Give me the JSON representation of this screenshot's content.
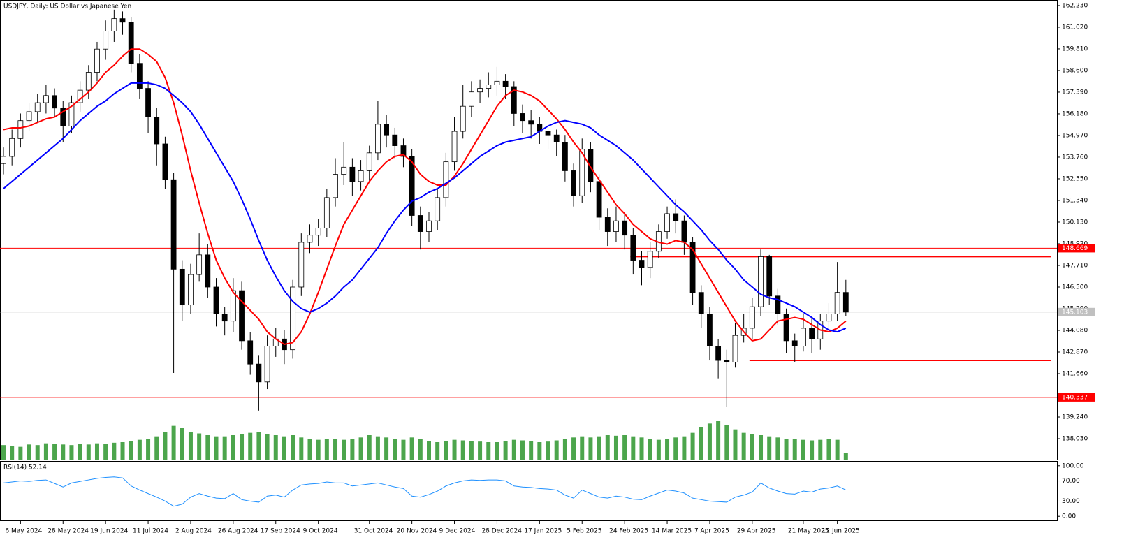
{
  "chart_data": [
    {
      "type": "candlestick",
      "title": "USDJPY, Daily:  US Dollar vs Japanese Yen",
      "categories": [
        null,
        null,
        "6 May 2024",
        null,
        null,
        null,
        null,
        "28 May 2024",
        null,
        null,
        null,
        null,
        "19 Jun 2024",
        null,
        null,
        null,
        null,
        "11 Jul 2024",
        null,
        null,
        null,
        null,
        "2 Aug 2024",
        null,
        null,
        null,
        null,
        "26 Aug 2024",
        null,
        null,
        null,
        null,
        "17 Sep 2024",
        null,
        null,
        null,
        null,
        "9 Oct 2024",
        null,
        null,
        null,
        null,
        null,
        "31 Oct 2024",
        null,
        null,
        null,
        null,
        "20 Nov 2024",
        null,
        null,
        null,
        null,
        "9 Dec 2024",
        null,
        null,
        null,
        null,
        "28 Dec 2024",
        null,
        null,
        null,
        null,
        "17 Jan 2025",
        null,
        null,
        null,
        null,
        "5 Feb 2025",
        null,
        null,
        null,
        null,
        "24 Feb 2025",
        null,
        null,
        null,
        null,
        "14 Mar 2025",
        null,
        null,
        null,
        null,
        "7 Apr 2025",
        null,
        null,
        null,
        null,
        "29 Apr 2025",
        null,
        null,
        null,
        null,
        null,
        "21 May 2025",
        null,
        null,
        null,
        "12 Jun 2025",
        null
      ],
      "open": [
        153.4,
        153.8,
        154.8,
        155.8,
        156.3,
        156.8,
        157.2,
        156.5,
        155.5,
        156.8,
        157.5,
        158.5,
        159.8,
        160.8,
        161.5,
        161.3,
        159.0,
        157.6,
        156.0,
        154.5,
        152.5,
        147.5,
        145.5,
        147.2,
        148.3,
        146.5,
        145.0,
        144.6,
        146.3,
        143.5,
        142.2,
        141.2,
        143.2,
        143.6,
        143.0,
        146.5,
        149.0,
        149.4,
        149.8,
        151.5,
        152.8,
        153.2,
        152.4,
        153.0,
        154.0,
        155.6,
        155.0,
        154.4,
        153.8,
        150.5,
        149.6,
        150.2,
        151.5,
        153.5,
        155.2,
        156.6,
        157.4,
        157.6,
        157.8,
        158.0,
        157.7,
        156.2,
        155.8,
        155.6,
        155.2,
        155.0,
        154.6,
        153.0,
        151.6,
        154.2,
        152.4,
        150.4,
        149.6,
        150.2,
        149.4,
        148.0,
        147.6,
        148.5,
        149.6,
        150.6,
        150.2,
        149.0,
        146.2,
        145.0,
        143.2,
        142.4,
        142.3,
        143.8,
        144.2,
        145.4,
        148.2,
        146.0,
        145.0,
        143.5,
        143.2,
        144.2,
        143.6,
        144.6,
        145.0,
        146.2
      ],
      "high": [
        154.3,
        155.3,
        156.2,
        156.8,
        157.3,
        157.8,
        157.6,
        156.9,
        157.2,
        158.0,
        158.9,
        160.2,
        161.4,
        162.0,
        161.9,
        161.6,
        159.5,
        158.0,
        156.5,
        154.9,
        152.9,
        148.0,
        147.8,
        149.5,
        148.9,
        147.0,
        145.4,
        147.0,
        146.8,
        144.0,
        142.7,
        143.8,
        144.2,
        144.1,
        146.9,
        149.5,
        150.0,
        150.3,
        152.0,
        153.7,
        154.6,
        153.7,
        153.6,
        154.4,
        156.9,
        156.1,
        155.4,
        154.8,
        154.2,
        151.0,
        150.7,
        152.0,
        154.0,
        156.0,
        157.8,
        158.0,
        158.1,
        158.5,
        158.8,
        158.4,
        158.0,
        156.7,
        156.4,
        156.0,
        155.6,
        155.3,
        155.0,
        153.4,
        154.8,
        154.6,
        152.8,
        150.9,
        151.0,
        150.6,
        149.8,
        148.5,
        149.0,
        150.0,
        151.0,
        151.4,
        150.5,
        149.3,
        146.6,
        145.4,
        143.6,
        143.0,
        144.5,
        145.0,
        145.9,
        148.6,
        148.3,
        146.4,
        145.3,
        143.9,
        145.0,
        144.8,
        145.0,
        145.6,
        147.9,
        146.9
      ],
      "low": [
        152.8,
        153.3,
        154.3,
        155.2,
        155.7,
        156.2,
        156.0,
        154.6,
        155.1,
        156.3,
        157.0,
        158.0,
        159.2,
        160.2,
        160.6,
        158.5,
        157.0,
        155.1,
        153.3,
        152.0,
        141.7,
        144.6,
        145.0,
        146.8,
        145.9,
        144.3,
        143.8,
        144.0,
        143.0,
        141.6,
        139.6,
        140.8,
        142.6,
        142.2,
        142.5,
        146.0,
        148.4,
        148.8,
        149.3,
        151.0,
        152.2,
        151.6,
        151.9,
        152.4,
        153.6,
        154.3,
        153.7,
        153.2,
        149.9,
        148.6,
        149.0,
        149.7,
        151.0,
        153.0,
        154.8,
        156.0,
        156.8,
        157.1,
        157.2,
        157.0,
        155.5,
        155.1,
        154.8,
        154.5,
        154.2,
        153.8,
        152.4,
        151.0,
        151.2,
        151.8,
        149.7,
        148.8,
        149.0,
        148.6,
        147.2,
        146.6,
        147.0,
        148.1,
        149.2,
        149.5,
        148.3,
        145.5,
        144.2,
        142.4,
        141.4,
        139.8,
        142.0,
        143.4,
        143.6,
        144.9,
        145.5,
        144.4,
        142.8,
        142.3,
        142.9,
        142.8,
        143.0,
        144.1,
        144.6,
        144.9
      ],
      "close": [
        153.8,
        154.8,
        155.8,
        156.3,
        156.8,
        157.2,
        156.5,
        155.5,
        156.8,
        157.5,
        158.5,
        159.8,
        160.8,
        161.5,
        161.3,
        159.0,
        157.6,
        156.0,
        154.5,
        152.5,
        147.5,
        145.5,
        147.2,
        148.3,
        146.5,
        145.0,
        144.6,
        146.3,
        143.5,
        142.2,
        141.2,
        143.2,
        143.6,
        143.0,
        146.5,
        149.0,
        149.4,
        149.8,
        151.5,
        152.8,
        153.2,
        152.4,
        153.0,
        154.0,
        155.6,
        155.0,
        154.4,
        153.8,
        150.5,
        149.6,
        150.2,
        151.5,
        153.5,
        155.2,
        156.6,
        157.4,
        157.6,
        157.8,
        158.0,
        157.7,
        156.2,
        155.8,
        155.6,
        155.2,
        155.0,
        154.6,
        153.0,
        151.6,
        154.2,
        152.4,
        150.4,
        149.6,
        150.2,
        149.4,
        148.0,
        147.6,
        148.5,
        149.6,
        150.6,
        150.2,
        149.0,
        146.2,
        145.0,
        143.2,
        142.4,
        142.3,
        143.8,
        144.2,
        145.4,
        148.2,
        146.0,
        145.0,
        143.5,
        143.2,
        144.2,
        143.6,
        144.6,
        145.0,
        146.2,
        145.1
      ],
      "ma_lines": [
        {
          "color": "#ff0000",
          "values": [
            155.3,
            155.4,
            155.4,
            155.5,
            155.7,
            155.9,
            156.0,
            156.3,
            156.6,
            157.0,
            157.4,
            157.9,
            158.5,
            158.9,
            159.4,
            159.8,
            159.8,
            159.5,
            159.1,
            158.2,
            156.8,
            155.0,
            153.0,
            151.2,
            149.5,
            148.0,
            147.0,
            146.2,
            145.7,
            145.2,
            144.7,
            144.0,
            143.6,
            143.3,
            143.4,
            144.0,
            145.0,
            146.2,
            147.5,
            148.8,
            150.0,
            150.8,
            151.6,
            152.4,
            153.0,
            153.5,
            153.8,
            153.9,
            153.5,
            152.8,
            152.4,
            152.2,
            152.2,
            152.7,
            153.4,
            154.2,
            155.0,
            155.8,
            156.6,
            157.2,
            157.5,
            157.4,
            157.2,
            156.9,
            156.4,
            155.9,
            155.3,
            154.6,
            154.0,
            153.2,
            152.5,
            151.8,
            151.1,
            150.6,
            150.0,
            149.6,
            149.2,
            149.0,
            148.9,
            149.1,
            149.0,
            148.6,
            147.8,
            147.0,
            146.2,
            145.4,
            144.6,
            144.0,
            143.5,
            143.6,
            144.1,
            144.6,
            144.7,
            144.8,
            144.7,
            144.4,
            144.1,
            144.0,
            144.2,
            144.6
          ]
        },
        {
          "color": "#0000ff",
          "values": [
            152.0,
            152.4,
            152.8,
            153.2,
            153.6,
            154.0,
            154.4,
            154.8,
            155.3,
            155.8,
            156.2,
            156.6,
            156.9,
            157.3,
            157.6,
            157.9,
            157.9,
            157.9,
            157.8,
            157.6,
            157.2,
            156.8,
            156.3,
            155.6,
            154.8,
            154.0,
            153.2,
            152.4,
            151.4,
            150.3,
            149.1,
            148.0,
            147.1,
            146.3,
            145.7,
            145.3,
            145.1,
            145.3,
            145.6,
            146.0,
            146.5,
            146.9,
            147.5,
            148.1,
            148.7,
            149.5,
            150.2,
            150.8,
            151.3,
            151.5,
            151.8,
            152.0,
            152.3,
            152.6,
            153.0,
            153.4,
            153.8,
            154.1,
            154.4,
            154.6,
            154.7,
            154.8,
            154.9,
            155.2,
            155.5,
            155.7,
            155.8,
            155.7,
            155.6,
            155.4,
            155.0,
            154.7,
            154.4,
            154.0,
            153.6,
            153.1,
            152.6,
            152.1,
            151.6,
            151.1,
            150.7,
            150.2,
            149.7,
            149.1,
            148.6,
            148.0,
            147.5,
            146.9,
            146.5,
            146.1,
            145.9,
            145.8,
            145.6,
            145.4,
            145.1,
            144.8,
            144.4,
            144.1,
            144.0,
            144.2
          ]
        }
      ],
      "volume": {
        "color": "#1f8f1f",
        "values": [
          25,
          24,
          22,
          26,
          25,
          28,
          27,
          26,
          25,
          27,
          26,
          28,
          27,
          29,
          30,
          32,
          34,
          35,
          40,
          48,
          58,
          54,
          48,
          45,
          42,
          40,
          40,
          42,
          44,
          46,
          48,
          44,
          42,
          40,
          42,
          38,
          36,
          34,
          36,
          35,
          34,
          36,
          38,
          42,
          40,
          38,
          35,
          34,
          38,
          36,
          32,
          30,
          32,
          34,
          33,
          32,
          31,
          30,
          30,
          32,
          34,
          33,
          32,
          30,
          31,
          33,
          36,
          38,
          40,
          38,
          40,
          42,
          41,
          42,
          40,
          38,
          36,
          34,
          36,
          38,
          40,
          46,
          56,
          62,
          66,
          60,
          52,
          46,
          44,
          42,
          40,
          38,
          36,
          35,
          34,
          33,
          34,
          35,
          34,
          12
        ]
      },
      "levels": [
        {
          "value": 148.669,
          "color": "#ff0000"
        },
        {
          "value": 140.337,
          "color": "#ff0000"
        }
      ],
      "segments": [
        {
          "value": 148.2,
          "color": "#ff0000"
        },
        {
          "value": 142.4,
          "color": "#ff0000"
        }
      ],
      "last_price": {
        "value": 145.103,
        "color": "#c0c0c0"
      },
      "ylim": [
        136.86,
        162.54
      ],
      "yticks": [
        {
          "value": 162.23,
          "label": "162.230"
        },
        {
          "value": 161.02,
          "label": "161.020"
        },
        {
          "value": 159.81,
          "label": "159.810"
        },
        {
          "value": 158.6,
          "label": "158.600"
        },
        {
          "value": 157.39,
          "label": "157.390"
        },
        {
          "value": 156.18,
          "label": "156.180"
        },
        {
          "value": 154.97,
          "label": "154.970"
        },
        {
          "value": 153.76,
          "label": "153.760"
        },
        {
          "value": 152.55,
          "label": "152.550"
        },
        {
          "value": 151.34,
          "label": "151.340"
        },
        {
          "value": 150.13,
          "label": "150.130"
        },
        {
          "value": 148.92,
          "label": "148.920"
        },
        {
          "value": 147.71,
          "label": "147.710"
        },
        {
          "value": 146.5,
          "label": "146.500"
        },
        {
          "value": 145.29,
          "label": "145.290"
        },
        {
          "value": 144.08,
          "label": "144.080"
        },
        {
          "value": 142.87,
          "label": "142.870"
        },
        {
          "value": 141.66,
          "label": "141.660"
        },
        {
          "value": 140.45,
          "label": "140.450"
        },
        {
          "value": 139.24,
          "label": "139.240"
        },
        {
          "value": 138.03,
          "label": "138.030"
        }
      ]
    },
    {
      "type": "line",
      "title": "RSI(14) 52.14",
      "color": "#1e90ff",
      "values": [
        66,
        68,
        70,
        69,
        71,
        72,
        65,
        58,
        66,
        69,
        72,
        75,
        77,
        78,
        76,
        60,
        52,
        45,
        38,
        30,
        20,
        24,
        38,
        45,
        40,
        36,
        35,
        45,
        33,
        30,
        28,
        40,
        42,
        38,
        52,
        62,
        64,
        65,
        68,
        66,
        66,
        60,
        62,
        64,
        66,
        62,
        58,
        55,
        40,
        38,
        43,
        50,
        60,
        66,
        70,
        72,
        71,
        72,
        72,
        70,
        60,
        58,
        57,
        55,
        54,
        52,
        42,
        36,
        52,
        45,
        38,
        36,
        40,
        38,
        34,
        33,
        40,
        46,
        52,
        50,
        46,
        36,
        33,
        30,
        29,
        28,
        38,
        42,
        48,
        66,
        56,
        50,
        45,
        44,
        50,
        48,
        54,
        56,
        60,
        52.14
      ],
      "ylim": [
        -8,
        108
      ],
      "yticks": [
        {
          "value": 100,
          "label": "100.00"
        },
        {
          "value": 70,
          "label": "70.00"
        },
        {
          "value": 30,
          "label": "30.00"
        },
        {
          "value": 0,
          "label": "0.00"
        }
      ]
    }
  ]
}
